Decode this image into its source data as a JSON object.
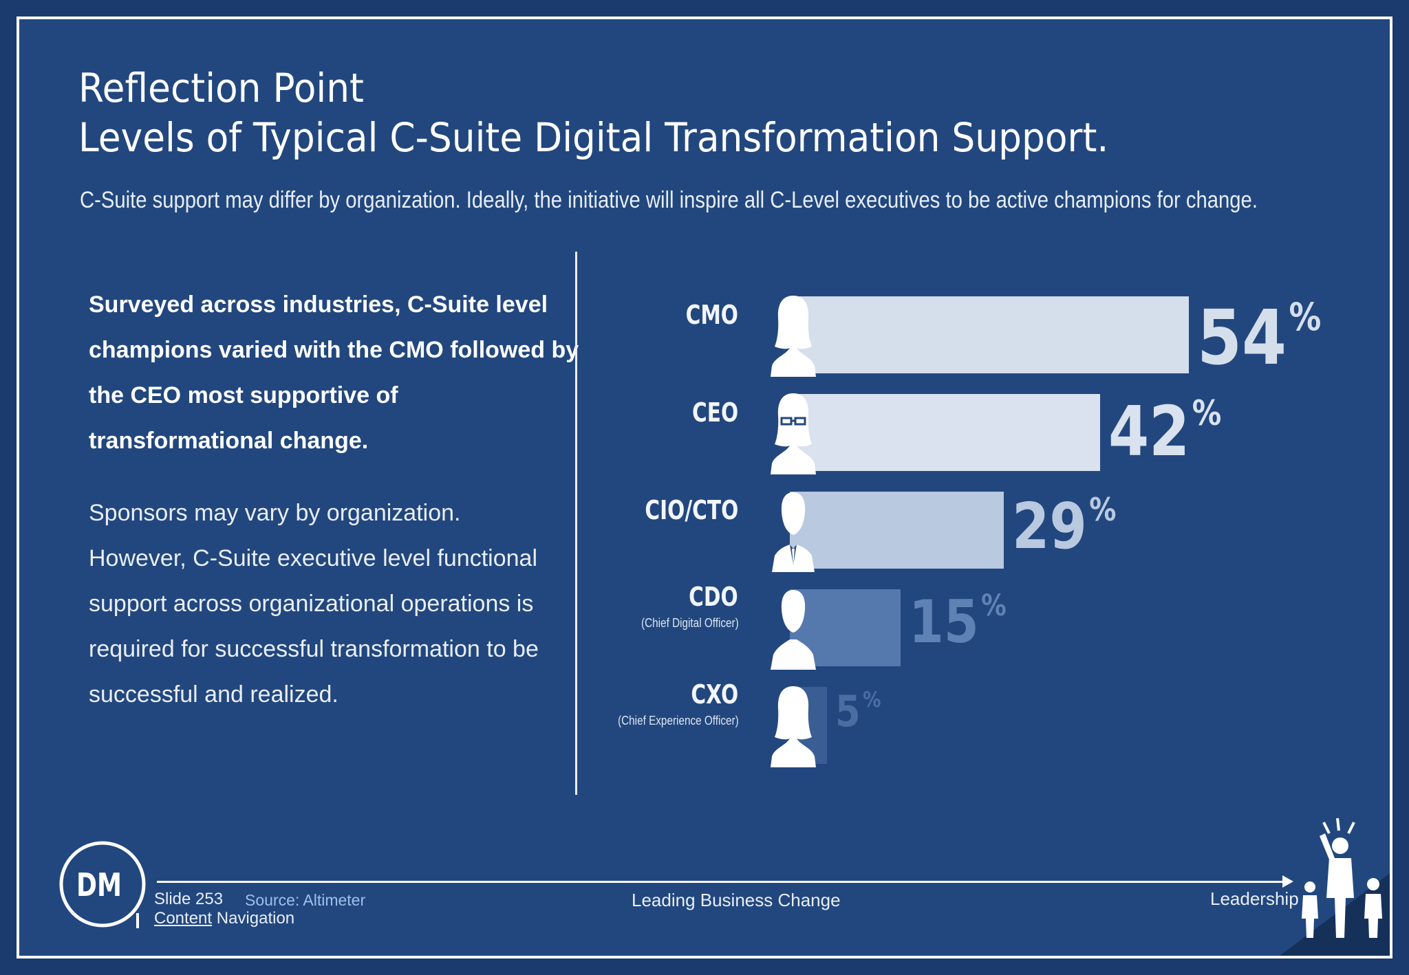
{
  "header": {
    "title_line1": "Reflection Point",
    "title_line2": "Levels of Typical C-Suite Digital Transformation Support.",
    "subtitle": "C-Suite support may differ by organization. Ideally, the initiative will inspire all C-Level executives to be active champions for change."
  },
  "body": {
    "paragraph1": "Surveyed across industries, C-Suite level champions varied with the CMO followed by the CEO most supportive of transformational change.",
    "paragraph2": "Sponsors may vary by organization. However, C-Suite executive level functional support across organizational operations is required for successful transformation to be successful and realized."
  },
  "chart_data": {
    "type": "bar",
    "orientation": "horizontal",
    "categories": [
      "CMO",
      "CEO",
      "CIO/CTO",
      "CDO",
      "CXO"
    ],
    "category_notes": [
      "",
      "",
      "",
      "(Chief Digital Officer)",
      "(Chief Experience Officer)"
    ],
    "values": [
      54,
      42,
      29,
      15,
      5
    ],
    "value_labels": [
      "54",
      "42",
      "29",
      "15",
      "5"
    ],
    "unit": "%",
    "icons": [
      "woman-silhouette-icon",
      "woman-glasses-silhouette-icon",
      "man-suit-silhouette-icon",
      "man-silhouette-icon",
      "woman-silhouette-icon"
    ],
    "bar_colors": [
      "#d5dfeb",
      "#d9e2ee",
      "#b9c9df",
      "#5679ad",
      "#3a5e94"
    ],
    "label_colors": [
      "#d5dfeb",
      "#d9e2ee",
      "#b9c9df",
      "#5f82b4",
      "#4a6da2"
    ],
    "xlim": [
      0,
      54
    ]
  },
  "footer": {
    "logo_text": "DM",
    "slide_number": "Slide 253",
    "source": "Source: Altimeter",
    "content_word": "Content",
    "navigation_word": "Navigation",
    "center_text": "Leading Business Change",
    "right_text": "Leadership"
  }
}
